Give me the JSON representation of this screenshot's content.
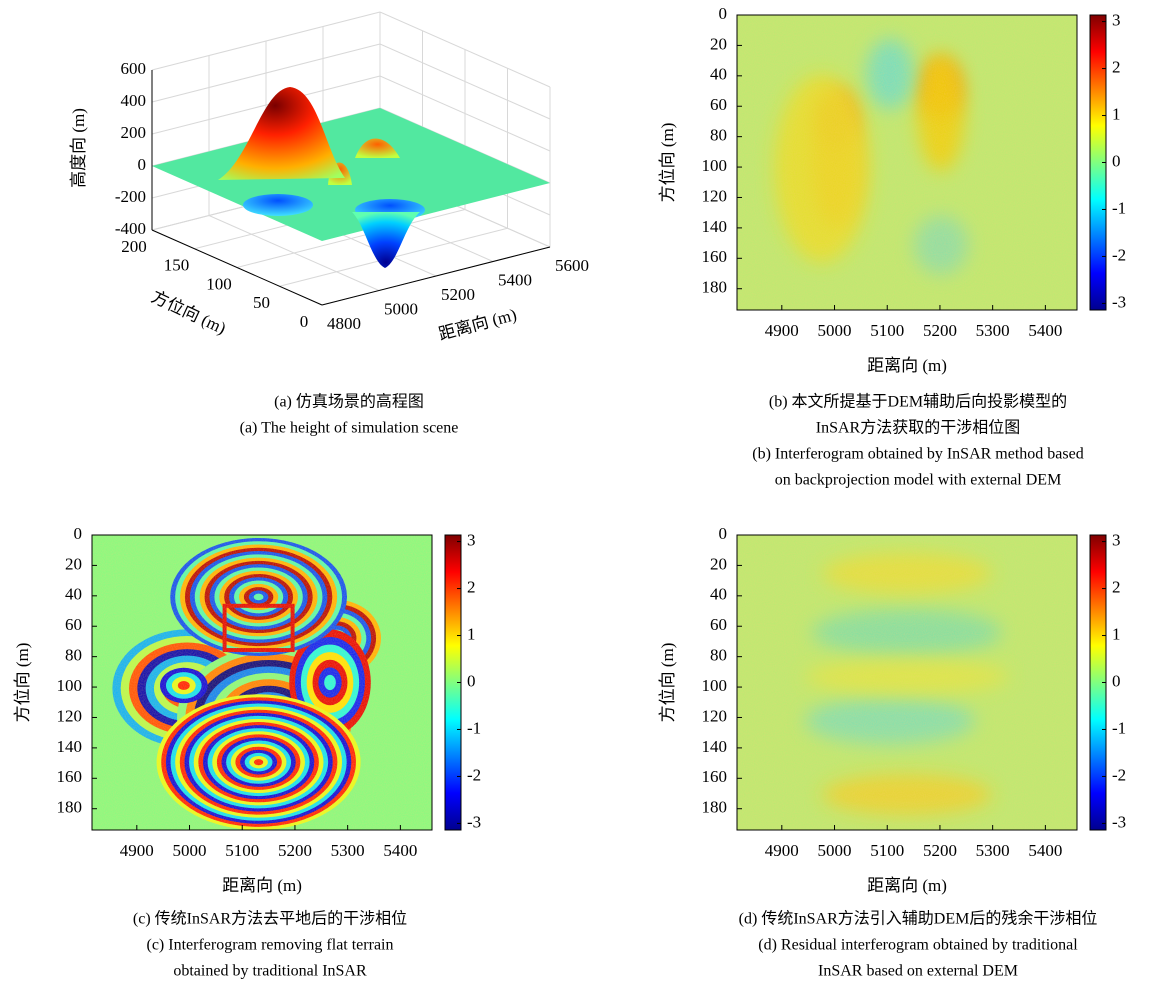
{
  "chart_data": [
    {
      "type": "surface",
      "zlabel": "高度向 (m)",
      "ylabel": "方位向 (m)",
      "xlabel": "距离向 (m)",
      "xlim": [
        4800,
        5600
      ],
      "xticks": [
        4800,
        5000,
        5200,
        5400,
        5600
      ],
      "ylim": [
        0,
        200
      ],
      "yticks": [
        0,
        50,
        100,
        150,
        200
      ],
      "zlim": [
        -400,
        600
      ],
      "zticks": [
        -400,
        -200,
        0,
        200,
        400,
        600
      ],
      "caption": [
        "(a) 仿真场景的高程图",
        "(a) The height of simulation scene"
      ]
    },
    {
      "type": "heatmap",
      "xlabel": "距离向 (m)",
      "ylabel": "方位向 (m)",
      "xlim": [
        4815,
        5460
      ],
      "xticks": [
        4900,
        5000,
        5100,
        5200,
        5300,
        5400
      ],
      "ylim": [
        0,
        194
      ],
      "yticks": [
        0,
        20,
        40,
        60,
        80,
        100,
        120,
        140,
        160,
        180
      ],
      "clim": [
        -3.14,
        3.14
      ],
      "cticks": [
        -3,
        -2,
        -1,
        0,
        1,
        2,
        3
      ],
      "caption": [
        "(b) 本文所提基于DEM辅助后向投影模型的",
        "InSAR方法获取的干涉相位图",
        "(b) Interferogram obtained by InSAR method based",
        "on backprojection model with external DEM"
      ]
    },
    {
      "type": "heatmap",
      "xlabel": "距离向 (m)",
      "ylabel": "方位向 (m)",
      "xlim": [
        4815,
        5460
      ],
      "xticks": [
        4900,
        5000,
        5100,
        5200,
        5300,
        5400
      ],
      "ylim": [
        0,
        194
      ],
      "yticks": [
        0,
        20,
        40,
        60,
        80,
        100,
        120,
        140,
        160,
        180
      ],
      "clim": [
        -3.14,
        3.14
      ],
      "cticks": [
        -3,
        -2,
        -1,
        0,
        1,
        2,
        3
      ],
      "caption": [
        "(c) 传统InSAR方法去平地后的干涉相位",
        "(c) Interferogram removing flat terrain",
        "obtained by traditional InSAR"
      ]
    },
    {
      "type": "heatmap",
      "xlabel": "距离向 (m)",
      "ylabel": "方位向 (m)",
      "xlim": [
        4815,
        5460
      ],
      "xticks": [
        4900,
        5000,
        5100,
        5200,
        5300,
        5400
      ],
      "ylim": [
        0,
        194
      ],
      "yticks": [
        0,
        20,
        40,
        60,
        80,
        100,
        120,
        140,
        160,
        180
      ],
      "clim": [
        -3.14,
        3.14
      ],
      "cticks": [
        -3,
        -2,
        -1,
        0,
        1,
        2,
        3
      ],
      "caption": [
        "(d) 传统InSAR方法引入辅助DEM后的残余干涉相位",
        "(d) Residual interferogram obtained by traditional",
        "InSAR based on external DEM"
      ]
    }
  ]
}
